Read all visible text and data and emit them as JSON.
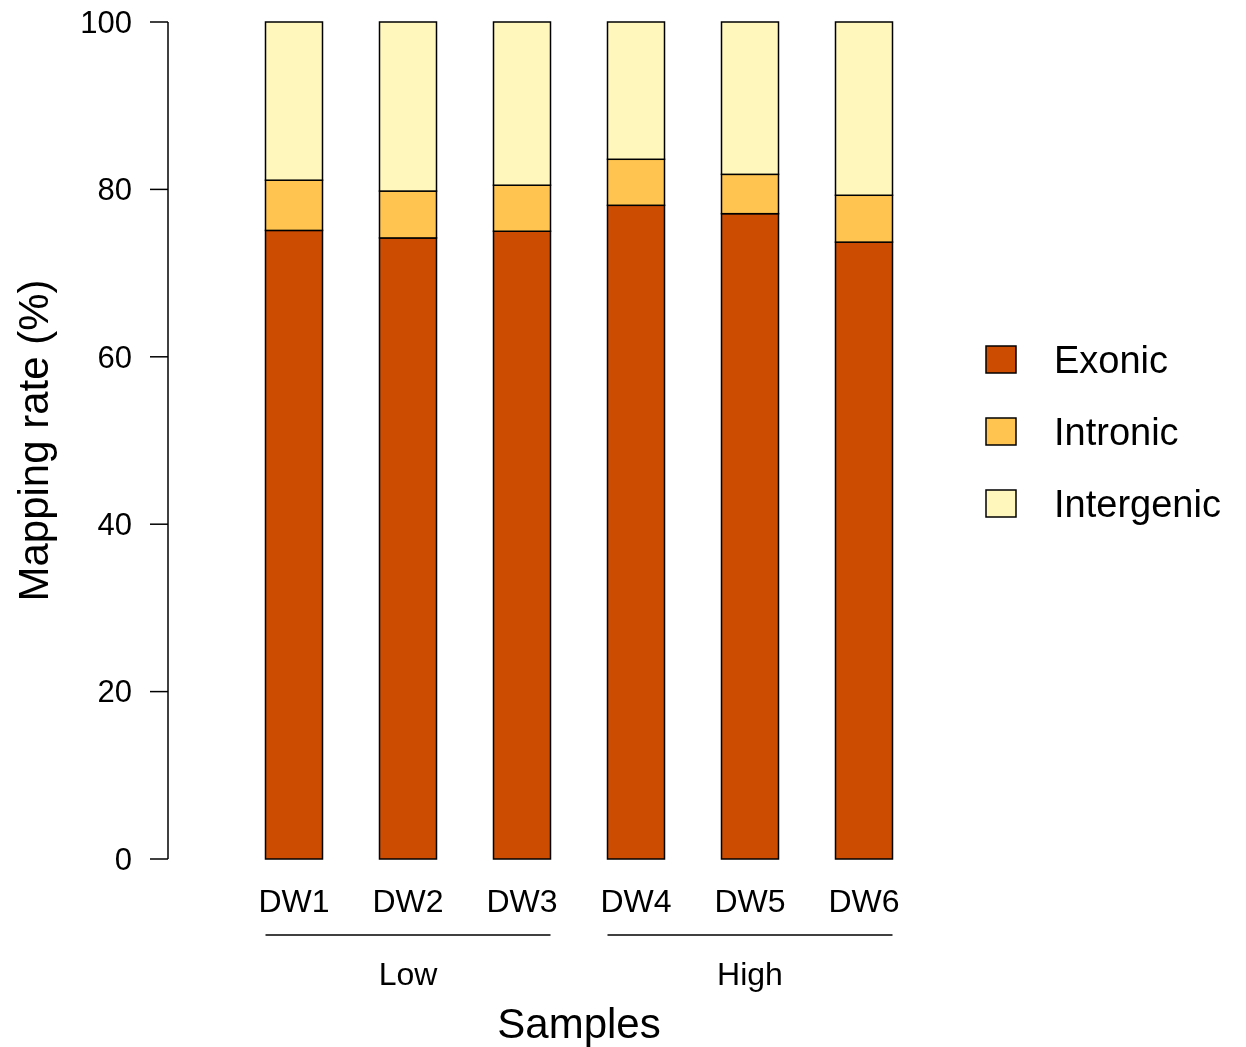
{
  "chart_data": {
    "type": "bar",
    "stacked": true,
    "xlabel": "Samples",
    "ylabel": "Mapping rate (%)",
    "categories": [
      "DW1",
      "DW2",
      "DW3",
      "DW4",
      "DW5",
      "DW6"
    ],
    "series": [
      {
        "name": "Exonic",
        "color": "#cc4c02",
        "values": [
          75.1,
          74.2,
          75.0,
          78.1,
          77.1,
          73.7
        ]
      },
      {
        "name": "Intronic",
        "color": "#fec44f",
        "values": [
          6.0,
          5.6,
          5.5,
          5.5,
          4.7,
          5.6
        ]
      },
      {
        "name": "Intergenic",
        "color": "#fff7bc",
        "values": [
          18.9,
          20.2,
          19.5,
          16.4,
          18.2,
          20.7
        ]
      }
    ],
    "ylim": [
      0,
      100
    ],
    "yticks": [
      0,
      20,
      40,
      60,
      80,
      100
    ],
    "grid": false,
    "legend": "right",
    "annotations": [
      "Low",
      "High"
    ]
  }
}
